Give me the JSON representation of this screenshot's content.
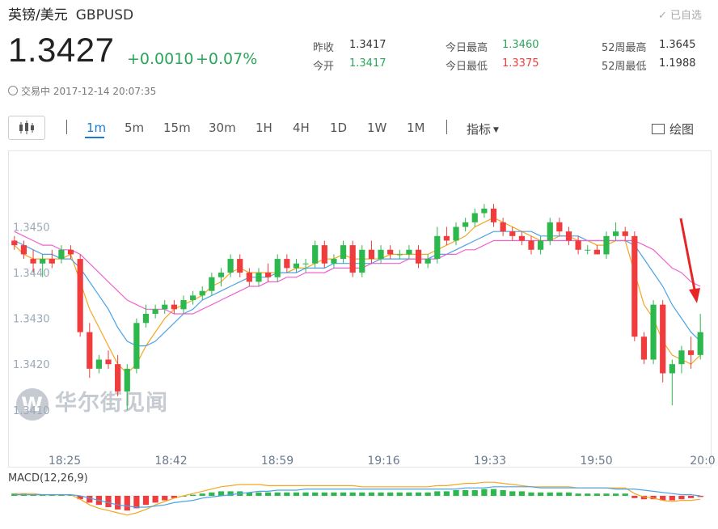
{
  "header": {
    "name": "英镑/美元",
    "code": "GBPUSD",
    "watch_label": "已自选"
  },
  "quote": {
    "price": "1.3427",
    "change": "+0.0010",
    "change_pct": "+0.07%",
    "status": "交易中 2017-12-14 20:07:35"
  },
  "stats": [
    {
      "label": "昨收",
      "value": "1.3417"
    },
    {
      "label": "今开",
      "value": "1.3417"
    },
    {
      "label": "今日最高",
      "value": "1.3460"
    },
    {
      "label": "今日最低",
      "value": "1.3375"
    },
    {
      "label": "52周最高",
      "value": "1.3645"
    },
    {
      "label": "52周最低",
      "value": "1.1988"
    }
  ],
  "toolbar": {
    "periods": [
      "1m",
      "5m",
      "15m",
      "30m",
      "1H",
      "4H",
      "1D",
      "1W",
      "1M"
    ],
    "active_period": "1m",
    "indicator_label": "指标",
    "draw_label": "绘图"
  },
  "watermark": "华尔街见闻",
  "colors": {
    "up": "#2db84d",
    "down": "#f03c3c",
    "ma_short": "#f5a623",
    "ma_mid": "#4aa3e8",
    "ma_long": "#f062d0",
    "accent": "#1a7bd6"
  },
  "chart_data": {
    "type": "candlestick",
    "title": "",
    "y_ticks": [
      "1.3450",
      "1.3440",
      "1.3430",
      "1.3420",
      "1.3410"
    ],
    "ylim": [
      1.3402,
      1.3466
    ],
    "x_ticks": [
      "18:25",
      "18:42",
      "18:59",
      "19:16",
      "19:33",
      "19:50",
      "20:0"
    ],
    "candles_ohlc": [
      [
        1.3447,
        1.3448,
        1.3445,
        1.3446
      ],
      [
        1.3446,
        1.3447,
        1.3443,
        1.3444
      ],
      [
        1.3443,
        1.3445,
        1.344,
        1.3442
      ],
      [
        1.3442,
        1.3444,
        1.3439,
        1.3443
      ],
      [
        1.3443,
        1.3445,
        1.3441,
        1.3442
      ],
      [
        1.3443,
        1.3446,
        1.3442,
        1.3445
      ],
      [
        1.3445,
        1.3446,
        1.3443,
        1.3444
      ],
      [
        1.3443,
        1.3444,
        1.3426,
        1.3427
      ],
      [
        1.3427,
        1.3429,
        1.3417,
        1.3419
      ],
      [
        1.3419,
        1.3422,
        1.3418,
        1.3421
      ],
      [
        1.3421,
        1.3423,
        1.3419,
        1.342
      ],
      [
        1.342,
        1.3422,
        1.3413,
        1.3414
      ],
      [
        1.3414,
        1.342,
        1.341,
        1.3419
      ],
      [
        1.3419,
        1.343,
        1.3418,
        1.3429
      ],
      [
        1.3429,
        1.3433,
        1.3428,
        1.3431
      ],
      [
        1.3431,
        1.3433,
        1.343,
        1.3432
      ],
      [
        1.3432,
        1.3434,
        1.3431,
        1.3433
      ],
      [
        1.3433,
        1.3434,
        1.3431,
        1.3432
      ],
      [
        1.3432,
        1.3435,
        1.3431,
        1.3434
      ],
      [
        1.3434,
        1.3436,
        1.3433,
        1.3435
      ],
      [
        1.3435,
        1.3437,
        1.3434,
        1.3436
      ],
      [
        1.3436,
        1.344,
        1.3435,
        1.3439
      ],
      [
        1.3439,
        1.3441,
        1.3437,
        1.344
      ],
      [
        1.344,
        1.3444,
        1.3439,
        1.3443
      ],
      [
        1.3443,
        1.3444,
        1.3439,
        1.344
      ],
      [
        1.344,
        1.3441,
        1.3437,
        1.3438
      ],
      [
        1.3438,
        1.3441,
        1.3437,
        1.344
      ],
      [
        1.344,
        1.3442,
        1.3438,
        1.3439
      ],
      [
        1.3439,
        1.3444,
        1.3438,
        1.3443
      ],
      [
        1.3443,
        1.3444,
        1.344,
        1.3441
      ],
      [
        1.3441,
        1.3443,
        1.344,
        1.3442
      ],
      [
        1.3442,
        1.3443,
        1.344,
        1.3442
      ],
      [
        1.3442,
        1.3447,
        1.3441,
        1.3446
      ],
      [
        1.3446,
        1.3447,
        1.3441,
        1.3442
      ],
      [
        1.3442,
        1.3444,
        1.3441,
        1.3443
      ],
      [
        1.3443,
        1.3447,
        1.3442,
        1.3446
      ],
      [
        1.3446,
        1.3447,
        1.3439,
        1.344
      ],
      [
        1.344,
        1.3446,
        1.3439,
        1.3445
      ],
      [
        1.3445,
        1.3447,
        1.3442,
        1.3443
      ],
      [
        1.3443,
        1.3446,
        1.3442,
        1.3445
      ],
      [
        1.3445,
        1.3446,
        1.3443,
        1.3444
      ],
      [
        1.3444,
        1.3445,
        1.3443,
        1.3444
      ],
      [
        1.3444,
        1.3446,
        1.3443,
        1.3445
      ],
      [
        1.3445,
        1.3446,
        1.3441,
        1.3442
      ],
      [
        1.3442,
        1.3444,
        1.3441,
        1.3443
      ],
      [
        1.3443,
        1.345,
        1.3442,
        1.3448
      ],
      [
        1.3448,
        1.345,
        1.3446,
        1.3447
      ],
      [
        1.3447,
        1.3451,
        1.3446,
        1.345
      ],
      [
        1.345,
        1.3452,
        1.3449,
        1.3451
      ],
      [
        1.3451,
        1.3454,
        1.345,
        1.3453
      ],
      [
        1.3453,
        1.3455,
        1.3452,
        1.3454
      ],
      [
        1.3454,
        1.3455,
        1.345,
        1.3451
      ],
      [
        1.3451,
        1.3452,
        1.3448,
        1.3449
      ],
      [
        1.3449,
        1.345,
        1.3447,
        1.3448
      ],
      [
        1.3448,
        1.3449,
        1.3446,
        1.3447
      ],
      [
        1.3447,
        1.3448,
        1.3444,
        1.3445
      ],
      [
        1.3445,
        1.3448,
        1.3444,
        1.3447
      ],
      [
        1.3447,
        1.3452,
        1.3446,
        1.3451
      ],
      [
        1.3451,
        1.3452,
        1.3448,
        1.3449
      ],
      [
        1.3449,
        1.345,
        1.3446,
        1.3447
      ],
      [
        1.3447,
        1.3448,
        1.3444,
        1.3445
      ],
      [
        1.3445,
        1.3446,
        1.3444,
        1.3445
      ],
      [
        1.3445,
        1.3446,
        1.3444,
        1.3444
      ],
      [
        1.3444,
        1.3449,
        1.3443,
        1.3448
      ],
      [
        1.3448,
        1.3451,
        1.3447,
        1.3449
      ],
      [
        1.3449,
        1.345,
        1.3447,
        1.3448
      ],
      [
        1.3448,
        1.3449,
        1.3425,
        1.3426
      ],
      [
        1.3426,
        1.3427,
        1.342,
        1.3421
      ],
      [
        1.3421,
        1.3434,
        1.342,
        1.3433
      ],
      [
        1.3433,
        1.3434,
        1.3416,
        1.3418
      ],
      [
        1.3418,
        1.3421,
        1.3411,
        1.342
      ],
      [
        1.342,
        1.3424,
        1.3418,
        1.3423
      ],
      [
        1.3423,
        1.3426,
        1.3419,
        1.3422
      ],
      [
        1.3422,
        1.3431,
        1.3421,
        1.3427
      ]
    ],
    "ma_series": [
      {
        "name": "",
        "values": [
          1.3446,
          1.3444,
          1.3443,
          1.3443,
          1.3443,
          1.3443,
          1.3444,
          1.3438,
          1.3432,
          1.3428,
          1.3424,
          1.342,
          1.3418,
          1.342,
          1.3424,
          1.3427,
          1.343,
          1.3432,
          1.3433,
          1.3434,
          1.3435,
          1.3437,
          1.3438,
          1.344,
          1.3441,
          1.344,
          1.344,
          1.344,
          1.344,
          1.344,
          1.3441,
          1.3441,
          1.3442,
          1.3443,
          1.3443,
          1.3444,
          1.3443,
          1.3443,
          1.3443,
          1.3443,
          1.3444,
          1.3444,
          1.3444,
          1.3444,
          1.3444,
          1.3445,
          1.3446,
          1.3447,
          1.3448,
          1.345,
          1.3451,
          1.3452,
          1.3451,
          1.345,
          1.3449,
          1.3448,
          1.3447,
          1.3447,
          1.3448,
          1.3448,
          1.3447,
          1.3447,
          1.3446,
          1.3446,
          1.3447,
          1.3447,
          1.344,
          1.3433,
          1.343,
          1.3425,
          1.3422,
          1.3421,
          1.342,
          1.3422
        ]
      },
      {
        "name": "",
        "values": [
          1.3447,
          1.3446,
          1.3445,
          1.3444,
          1.3444,
          1.3443,
          1.3443,
          1.3441,
          1.3438,
          1.3435,
          1.3432,
          1.3428,
          1.3425,
          1.3424,
          1.3424,
          1.3425,
          1.3427,
          1.3429,
          1.3431,
          1.3432,
          1.3434,
          1.3435,
          1.3436,
          1.3437,
          1.3438,
          1.3439,
          1.3439,
          1.3439,
          1.344,
          1.344,
          1.344,
          1.3441,
          1.3441,
          1.3441,
          1.3442,
          1.3442,
          1.3442,
          1.3442,
          1.3442,
          1.3443,
          1.3443,
          1.3443,
          1.3443,
          1.3443,
          1.3443,
          1.3444,
          1.3444,
          1.3445,
          1.3446,
          1.3447,
          1.3448,
          1.3449,
          1.3449,
          1.3449,
          1.3449,
          1.3449,
          1.3448,
          1.3448,
          1.3448,
          1.3448,
          1.3448,
          1.3447,
          1.3447,
          1.3447,
          1.3447,
          1.3447,
          1.3446,
          1.3443,
          1.344,
          1.3437,
          1.3433,
          1.343,
          1.3427,
          1.3425
        ]
      },
      {
        "name": "",
        "values": [
          1.3449,
          1.3448,
          1.3447,
          1.3446,
          1.3446,
          1.3445,
          1.3445,
          1.3444,
          1.3442,
          1.344,
          1.3438,
          1.3436,
          1.3434,
          1.3433,
          1.3432,
          1.3432,
          1.3432,
          1.3431,
          1.3431,
          1.3431,
          1.3432,
          1.3433,
          1.3434,
          1.3435,
          1.3436,
          1.3437,
          1.3437,
          1.3438,
          1.3438,
          1.3439,
          1.3439,
          1.344,
          1.344,
          1.344,
          1.3441,
          1.3441,
          1.3441,
          1.3441,
          1.3442,
          1.3442,
          1.3442,
          1.3442,
          1.3443,
          1.3443,
          1.3443,
          1.3443,
          1.3444,
          1.3444,
          1.3445,
          1.3445,
          1.3446,
          1.3447,
          1.3447,
          1.3447,
          1.3447,
          1.3447,
          1.3447,
          1.3447,
          1.3447,
          1.3447,
          1.3447,
          1.3447,
          1.3447,
          1.3447,
          1.3447,
          1.3447,
          1.3447,
          1.3446,
          1.3445,
          1.3443,
          1.3441,
          1.344,
          1.3438,
          1.3437
        ]
      }
    ],
    "macd": {
      "label": "MACD(12,26,9)",
      "hist": [
        0.2,
        0.2,
        0.1,
        0.1,
        0.1,
        0.1,
        0.1,
        -0.3,
        -0.6,
        -0.8,
        -1,
        -1.2,
        -1.3,
        -1.1,
        -0.8,
        -0.6,
        -0.4,
        -0.2,
        0,
        0.1,
        0.2,
        0.3,
        0.4,
        0.4,
        0.4,
        0.3,
        0.3,
        0.3,
        0.3,
        0.3,
        0.3,
        0.3,
        0.3,
        0.3,
        0.3,
        0.3,
        0.3,
        0.3,
        0.3,
        0.3,
        0.3,
        0.3,
        0.3,
        0.3,
        0.3,
        0.4,
        0.4,
        0.5,
        0.5,
        0.5,
        0.6,
        0.6,
        0.5,
        0.4,
        0.4,
        0.3,
        0.3,
        0.3,
        0.3,
        0.3,
        0.2,
        0.2,
        0.2,
        0.2,
        0.2,
        0.2,
        -0.2,
        -0.3,
        -0.3,
        -0.4,
        -0.4,
        -0.3,
        -0.2,
        -0.1
      ],
      "dif": [
        0.2,
        0.2,
        0.2,
        0.1,
        0.1,
        0.1,
        0.1,
        -0.3,
        -0.8,
        -1.1,
        -1.3,
        -1.5,
        -1.7,
        -1.5,
        -1.2,
        -0.8,
        -0.5,
        -0.2,
        0,
        0.2,
        0.4,
        0.6,
        0.8,
        0.9,
        1,
        1,
        1,
        0.9,
        0.9,
        0.9,
        0.9,
        0.9,
        0.9,
        0.9,
        0.9,
        0.9,
        0.9,
        0.8,
        0.8,
        0.8,
        0.8,
        0.8,
        0.8,
        0.8,
        0.8,
        0.9,
        0.9,
        1,
        1.1,
        1.1,
        1.2,
        1.2,
        1.1,
        1,
        0.9,
        0.8,
        0.8,
        0.8,
        0.8,
        0.8,
        0.7,
        0.7,
        0.7,
        0.7,
        0.7,
        0.7,
        0.2,
        -0.1,
        -0.2,
        -0.4,
        -0.5,
        -0.4,
        -0.4,
        -0.3
      ],
      "dea": [
        0.1,
        0.1,
        0.1,
        0.1,
        0.1,
        0.1,
        0.1,
        0,
        -0.2,
        -0.4,
        -0.6,
        -0.8,
        -0.9,
        -1,
        -1,
        -0.9,
        -0.8,
        -0.6,
        -0.5,
        -0.4,
        -0.2,
        -0.1,
        0,
        0.1,
        0.2,
        0.3,
        0.4,
        0.4,
        0.5,
        0.5,
        0.5,
        0.6,
        0.6,
        0.6,
        0.6,
        0.6,
        0.6,
        0.6,
        0.6,
        0.6,
        0.6,
        0.6,
        0.6,
        0.6,
        0.6,
        0.6,
        0.6,
        0.6,
        0.7,
        0.7,
        0.7,
        0.8,
        0.8,
        0.8,
        0.8,
        0.8,
        0.7,
        0.7,
        0.7,
        0.7,
        0.7,
        0.7,
        0.7,
        0.7,
        0.6,
        0.6,
        0.6,
        0.5,
        0.4,
        0.3,
        0.2,
        0.1,
        0.1,
        0
      ]
    }
  }
}
